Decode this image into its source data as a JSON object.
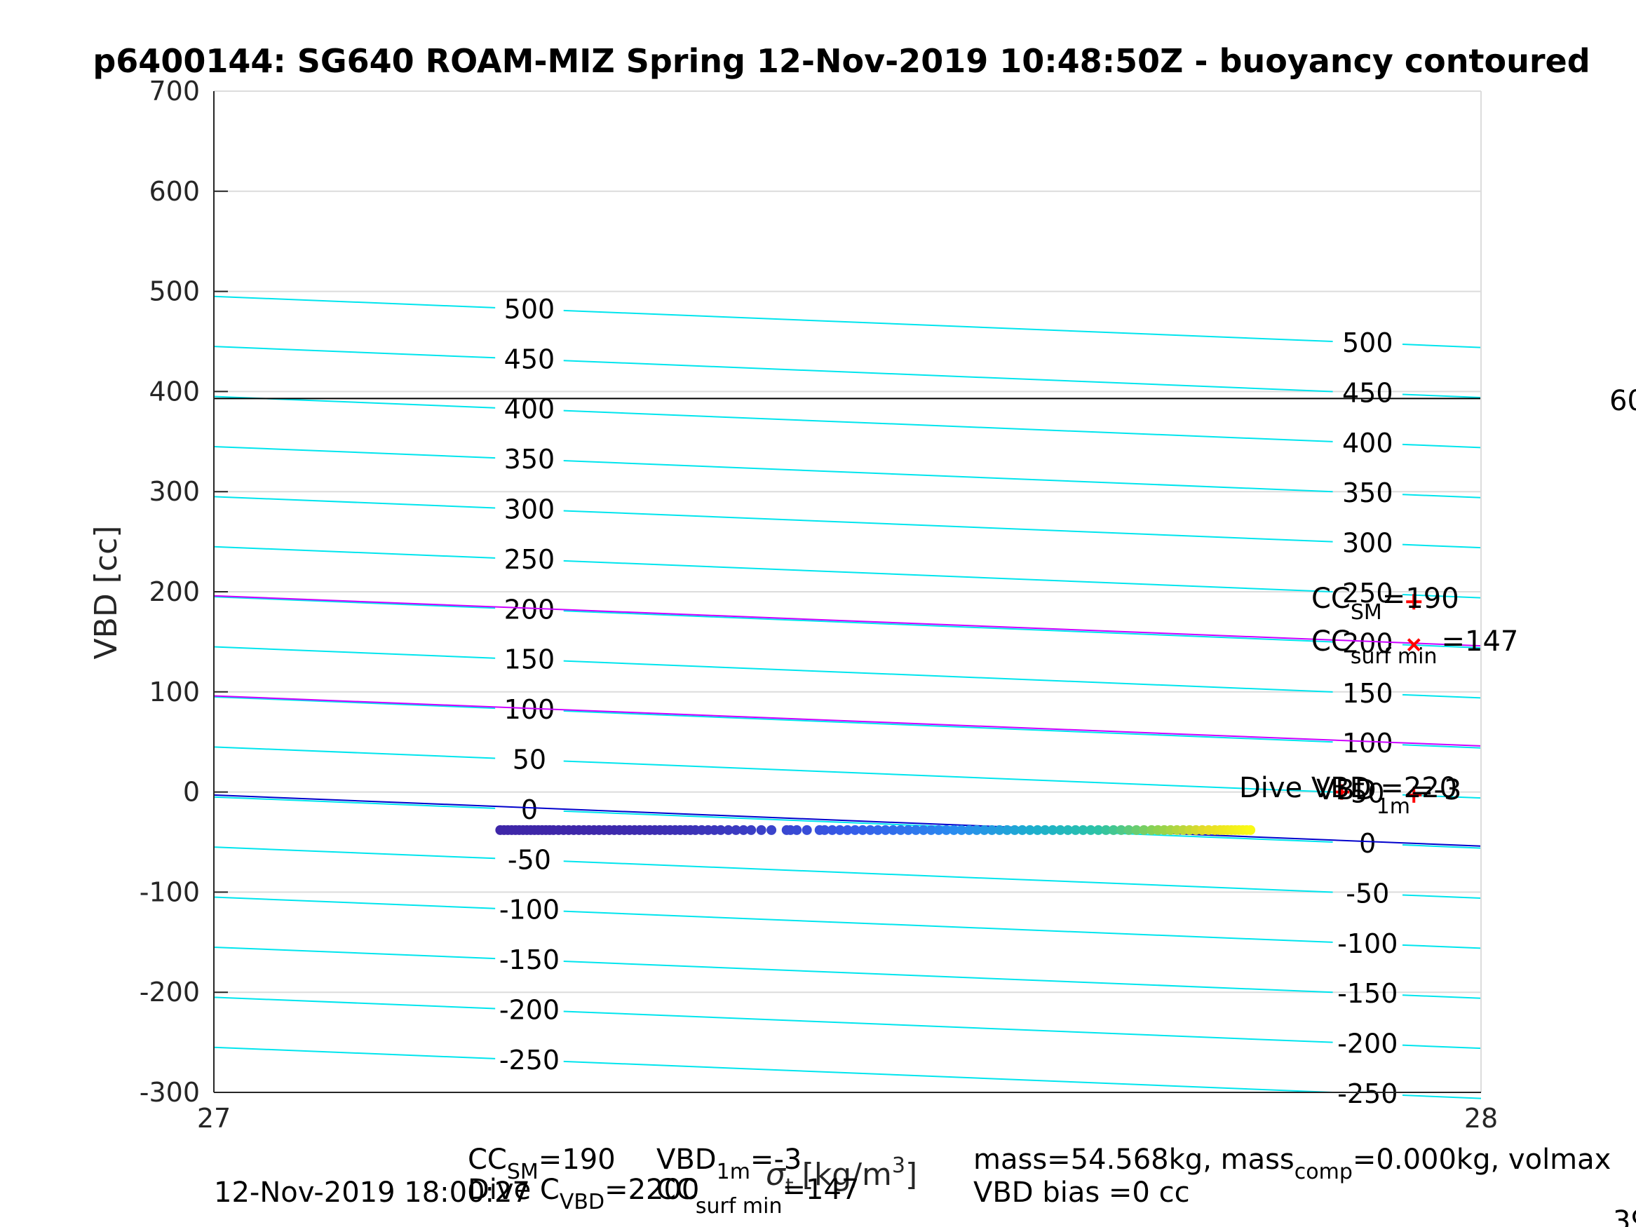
{
  "chart_data": {
    "type": "scatter",
    "title": "p6400144: SG640 ROAM-MIZ Spring 12-Nov-2019 10:48:50Z - buoyancy contoured",
    "xlabel_main": "σ",
    "xlabel_sub": "t",
    "xlabel_unit": "[kg/m",
    "xlabel_sup": "3",
    "xlabel_close": "]",
    "ylabel": "VBD [cc]",
    "xlim": [
      27,
      28
    ],
    "ylim": [
      -300,
      700
    ],
    "x_ticks": [
      "27",
      "28"
    ],
    "y_ticks": [
      "-300",
      "-200",
      "-100",
      "0",
      "100",
      "200",
      "300",
      "400",
      "500",
      "600",
      "700"
    ],
    "grid": true,
    "contours": {
      "levels": [
        -250,
        -200,
        -150,
        -100,
        -50,
        0,
        50,
        100,
        150,
        200,
        250,
        300,
        350,
        400,
        450,
        500
      ],
      "slope_cc_per_unit_sigma": -51,
      "offset_cc": -5,
      "color": "#00e5ee",
      "labels_left": [
        "500",
        "450",
        "400",
        "350",
        "300",
        "250",
        "200",
        "150",
        "100",
        "50",
        "0",
        "-50",
        "-100",
        "-150",
        "-200",
        "-250"
      ],
      "labels_right": [
        "500",
        "450",
        "400",
        "350",
        "300",
        "250",
        "200",
        "150",
        "100",
        "50",
        "0",
        "-50",
        "-100",
        "-150",
        "-200",
        "-250"
      ]
    },
    "reference_lines": [
      {
        "kind": "horizontal",
        "y": 393,
        "color": "#000000"
      },
      {
        "kind": "sloped",
        "y_at_27": 196,
        "y_at_28": 146,
        "color": "#cc00ff"
      },
      {
        "kind": "sloped",
        "y_at_27": 96,
        "y_at_28": 46,
        "color": "#cc00ff"
      },
      {
        "kind": "sloped",
        "y_at_27": -3,
        "y_at_28": -54,
        "color": "#0000cc"
      }
    ],
    "series": [
      {
        "kind": "dive_points",
        "y": -38,
        "x": [
          27.226,
          27.229,
          27.232,
          27.235,
          27.238,
          27.241,
          27.244,
          27.247,
          27.25,
          27.253,
          27.256,
          27.259,
          27.262,
          27.265,
          27.268,
          27.272,
          27.276,
          27.28,
          27.284,
          27.288,
          27.292,
          27.296,
          27.3,
          27.304,
          27.308,
          27.312,
          27.316,
          27.32,
          27.324,
          27.328,
          27.332,
          27.336,
          27.34,
          27.344,
          27.348,
          27.352,
          27.356,
          27.36,
          27.364,
          27.368,
          27.372,
          27.376,
          27.38,
          27.385,
          27.39,
          27.395,
          27.4,
          27.406,
          27.412,
          27.418,
          27.424,
          27.432,
          27.44,
          27.452,
          27.455,
          27.46,
          27.468,
          27.478,
          27.482,
          27.488,
          27.494,
          27.5,
          27.506,
          27.512,
          27.518,
          27.524,
          27.53,
          27.536,
          27.542,
          27.548,
          27.554,
          27.56,
          27.566,
          27.572,
          27.578,
          27.584,
          27.59,
          27.596,
          27.602,
          27.608,
          27.614,
          27.62,
          27.626,
          27.632,
          27.638,
          27.644,
          27.65,
          27.656,
          27.662,
          27.668,
          27.674,
          27.68,
          27.686,
          27.692,
          27.698,
          27.704,
          27.71,
          27.716,
          27.722,
          27.728,
          27.734,
          27.74,
          27.745,
          27.75,
          27.755,
          27.76,
          27.765,
          27.77,
          27.775,
          27.78,
          27.785,
          27.79,
          27.794,
          27.797,
          27.8,
          27.803,
          27.806,
          27.809,
          27.812,
          27.815,
          27.818
        ]
      },
      {
        "kind": "marker",
        "symbol": "+",
        "x": 27.947,
        "y": 190,
        "color": "#ff0000"
      },
      {
        "kind": "marker",
        "symbol": "x",
        "x": 27.947,
        "y": 147,
        "color": "#ff0000"
      },
      {
        "kind": "marker",
        "symbol": "+",
        "x": 27.89,
        "y": 0,
        "color": "#ff0000"
      },
      {
        "kind": "marker",
        "symbol": "+",
        "x": 27.947,
        "y": -3,
        "color": "#ff0000"
      }
    ],
    "annotations": {
      "cc_sm": {
        "main": "CC",
        "sub": "SM",
        "value": "=190"
      },
      "cc_surf": {
        "main": "CC",
        "sub": "surf min",
        "value": "=147"
      },
      "dive_vbd": "Dive VBD =220",
      "vbd_1m": {
        "main": "VBD",
        "sub": "1m",
        "value": "=-3"
      },
      "right_edge_top": "60",
      "right_edge_bottom": "39"
    }
  },
  "footer": {
    "timestamp": "12-Nov-2019 18:00:27",
    "cc_sm": {
      "main": "CC",
      "sub": "SM",
      "value": "=190"
    },
    "vbd_1m": {
      "main": "VBD",
      "sub": "1m",
      "value": "=-3"
    },
    "dive_c_vbd": {
      "main": "Dive C",
      "sub": "VBD",
      "value": "=2200"
    },
    "cc_surf": {
      "main": "CC",
      "sub": "surf min",
      "value": "=147"
    },
    "mass_line": {
      "prefix": "mass=54.568kg, mass",
      "sub": "comp",
      "suffix": "=0.000kg, volmax"
    },
    "vbd_bias": "VBD bias =0 cc"
  }
}
